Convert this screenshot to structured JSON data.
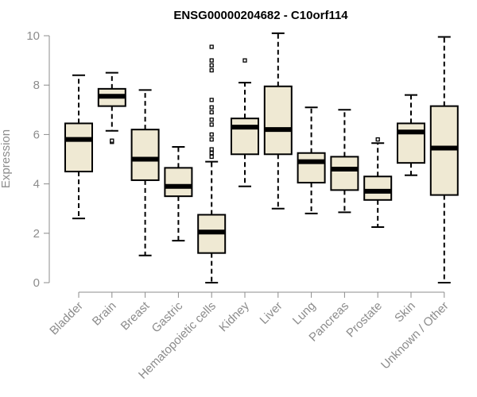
{
  "chart_data": {
    "type": "boxplot",
    "title": "ENSG00000204682 - C10orf114",
    "xlabel": "",
    "ylabel": "Expression",
    "ylim": [
      0,
      10
    ],
    "yticks": [
      0,
      2,
      4,
      6,
      8,
      10
    ],
    "colors": {
      "box_fill": "#efe9d3",
      "box_stroke": "#000000",
      "axis": "#8c8c8c"
    },
    "categories": [
      "Bladder",
      "Brain",
      "Breast",
      "Gastric",
      "Hematopoietic cells",
      "Kidney",
      "Liver",
      "Lung",
      "Pancreas",
      "Prostate",
      "Skin",
      "Unknown / Other"
    ],
    "boxes": [
      {
        "label": "Bladder",
        "whisker_low": 2.6,
        "q1": 4.5,
        "median": 5.8,
        "q3": 6.45,
        "whisker_high": 8.4,
        "outliers": []
      },
      {
        "label": "Brain",
        "whisker_low": 6.15,
        "q1": 7.15,
        "median": 7.55,
        "q3": 7.85,
        "whisker_high": 8.5,
        "outliers": [
          5.7,
          5.75
        ]
      },
      {
        "label": "Breast",
        "whisker_low": 1.1,
        "q1": 4.15,
        "median": 5.0,
        "q3": 6.2,
        "whisker_high": 7.8,
        "outliers": []
      },
      {
        "label": "Gastric",
        "whisker_low": 1.7,
        "q1": 3.5,
        "median": 3.9,
        "q3": 4.65,
        "whisker_high": 5.5,
        "outliers": []
      },
      {
        "label": "Hematopoietic cells",
        "whisker_low": 0.0,
        "q1": 1.2,
        "median": 2.05,
        "q3": 2.75,
        "whisker_high": 4.9,
        "outliers": [
          5.1,
          5.25,
          5.4,
          5.8,
          6.0,
          6.4,
          6.6,
          6.9,
          7.1,
          7.4,
          8.6,
          8.8,
          9.0,
          9.55
        ]
      },
      {
        "label": "Kidney",
        "whisker_low": 3.9,
        "q1": 5.2,
        "median": 6.3,
        "q3": 6.65,
        "whisker_high": 8.1,
        "outliers": [
          9.0
        ]
      },
      {
        "label": "Liver",
        "whisker_low": 3.0,
        "q1": 5.2,
        "median": 6.2,
        "q3": 7.95,
        "whisker_high": 10.1,
        "outliers": []
      },
      {
        "label": "Lung",
        "whisker_low": 2.8,
        "q1": 4.05,
        "median": 4.9,
        "q3": 5.25,
        "whisker_high": 7.1,
        "outliers": []
      },
      {
        "label": "Pancreas",
        "whisker_low": 2.85,
        "q1": 3.75,
        "median": 4.6,
        "q3": 5.1,
        "whisker_high": 7.0,
        "outliers": []
      },
      {
        "label": "Prostate",
        "whisker_low": 2.25,
        "q1": 3.35,
        "median": 3.7,
        "q3": 4.3,
        "whisker_high": 5.65,
        "outliers": [
          5.8
        ]
      },
      {
        "label": "Skin",
        "whisker_low": 4.35,
        "q1": 4.85,
        "median": 6.1,
        "q3": 6.45,
        "whisker_high": 7.6,
        "outliers": []
      },
      {
        "label": "Unknown / Other",
        "whisker_low": 0.0,
        "q1": 3.55,
        "median": 5.45,
        "q3": 7.15,
        "whisker_high": 9.95,
        "outliers": []
      }
    ]
  }
}
